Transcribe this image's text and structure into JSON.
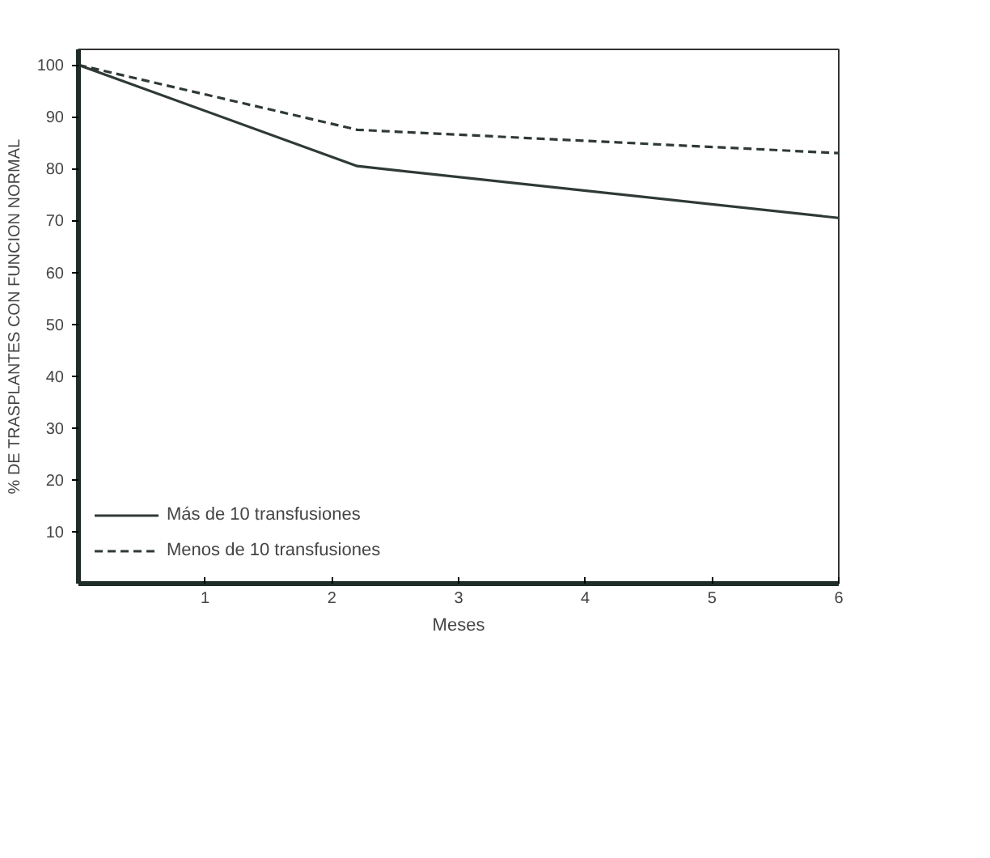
{
  "chart_data": {
    "type": "line",
    "ylabel": "% DE TRASPLANTES CON FUNCION NORMAL",
    "xlabel": "Meses",
    "x": [
      0,
      2.2,
      6
    ],
    "series": [
      {
        "name": "Más de 10 transfusiones",
        "color": "#2f3a36",
        "values": [
          100,
          80.5,
          70.5
        ],
        "line_style": "solid"
      },
      {
        "name": "Menos de 10 transfusiones",
        "color": "#2f3a36",
        "values": [
          100,
          87.5,
          83
        ],
        "line_style": "dashed"
      }
    ],
    "xlim": [
      0,
      6
    ],
    "ylim": [
      0,
      103
    ],
    "xticks": [
      1,
      2,
      3,
      4,
      5,
      6
    ],
    "yticks": [
      10,
      20,
      30,
      40,
      50,
      60,
      70,
      80,
      90,
      100
    ],
    "grid": false,
    "legend": "bottom left",
    "marker": "none"
  }
}
